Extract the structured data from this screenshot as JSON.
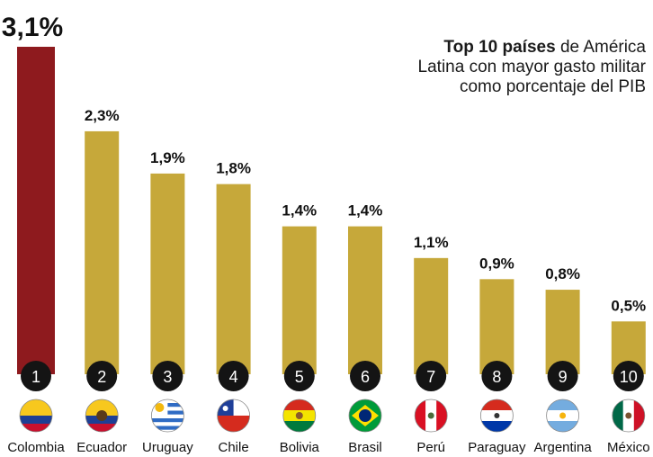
{
  "title": {
    "bold": "Top 10 países",
    "rest_line1": " de América",
    "line2": "Latina con mayor gasto militar",
    "line3": "como porcentaje del PIB"
  },
  "colors": {
    "highlight_bar": "#8e1a1e",
    "bar": "#c6a83a",
    "rank_circle": "#141414",
    "rank_text": "#ffffff",
    "label_text": "#111111"
  },
  "chart_data": {
    "type": "bar",
    "categories": [
      "Colombia",
      "Ecuador",
      "Uruguay",
      "Chile",
      "Bolivia",
      "Brasil",
      "Perú",
      "Paraguay",
      "Argentina",
      "México"
    ],
    "values": [
      3.1,
      2.3,
      1.9,
      1.8,
      1.4,
      1.4,
      1.1,
      0.9,
      0.8,
      0.5
    ],
    "value_labels": [
      "3,1%",
      "2,3%",
      "1,9%",
      "1,8%",
      "1,4%",
      "1,4%",
      "1,1%",
      "0,9%",
      "0,8%",
      "0,5%"
    ],
    "ranks": [
      "1",
      "2",
      "3",
      "4",
      "5",
      "6",
      "7",
      "8",
      "9",
      "10"
    ],
    "flags": [
      "colombia-flag-icon",
      "ecuador-flag-icon",
      "uruguay-flag-icon",
      "chile-flag-icon",
      "bolivia-flag-icon",
      "brasil-flag-icon",
      "peru-flag-icon",
      "paraguay-flag-icon",
      "argentina-flag-icon",
      "mexico-flag-icon"
    ],
    "ylim": [
      0,
      3.1
    ],
    "grid": false,
    "legend": "none"
  }
}
